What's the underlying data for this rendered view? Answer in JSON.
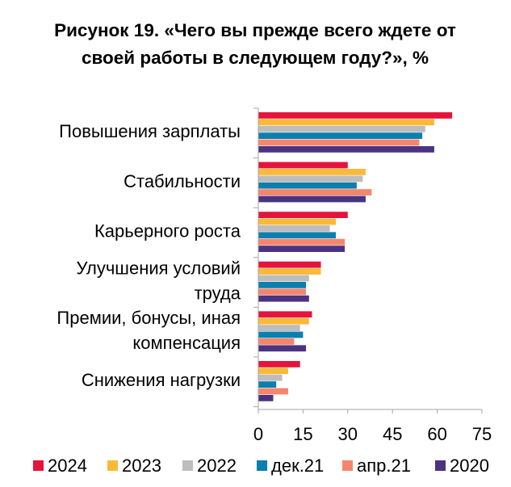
{
  "chart_data": {
    "type": "bar",
    "orientation": "horizontal",
    "title_lines": [
      "Рисунок 19. «Чего вы прежде всего ждете от",
      "своей работы в следующем году?», %"
    ],
    "categories": [
      [
        "Повышения зарплаты"
      ],
      [
        "Стабильности"
      ],
      [
        "Карьерного роста"
      ],
      [
        "Улучшения условий",
        "труда"
      ],
      [
        "Премии, бонусы, иная",
        "компенсация"
      ],
      [
        "Снижения нагрузки"
      ]
    ],
    "series": [
      {
        "name": "2024",
        "color": "#e5143c",
        "values": [
          65,
          30,
          30,
          21,
          18,
          14
        ]
      },
      {
        "name": "2023",
        "color": "#fbb93a",
        "values": [
          59,
          36,
          26,
          21,
          17,
          10
        ]
      },
      {
        "name": "2022",
        "color": "#bdbdbd",
        "values": [
          56,
          35,
          24,
          17,
          14,
          8
        ]
      },
      {
        "name": "дек.21",
        "color": "#0d7fae",
        "values": [
          55,
          33,
          26,
          16,
          15,
          6
        ]
      },
      {
        "name": "апр.21",
        "color": "#f5866e",
        "values": [
          54,
          38,
          29,
          16,
          12,
          10
        ]
      },
      {
        "name": "2020",
        "color": "#4b3382",
        "values": [
          59,
          36,
          29,
          17,
          16,
          5
        ]
      }
    ],
    "xlim": [
      0,
      75
    ],
    "xticks": [
      "0",
      "15",
      "30",
      "45",
      "60",
      "75"
    ],
    "grid": false,
    "legend_position": "bottom"
  }
}
